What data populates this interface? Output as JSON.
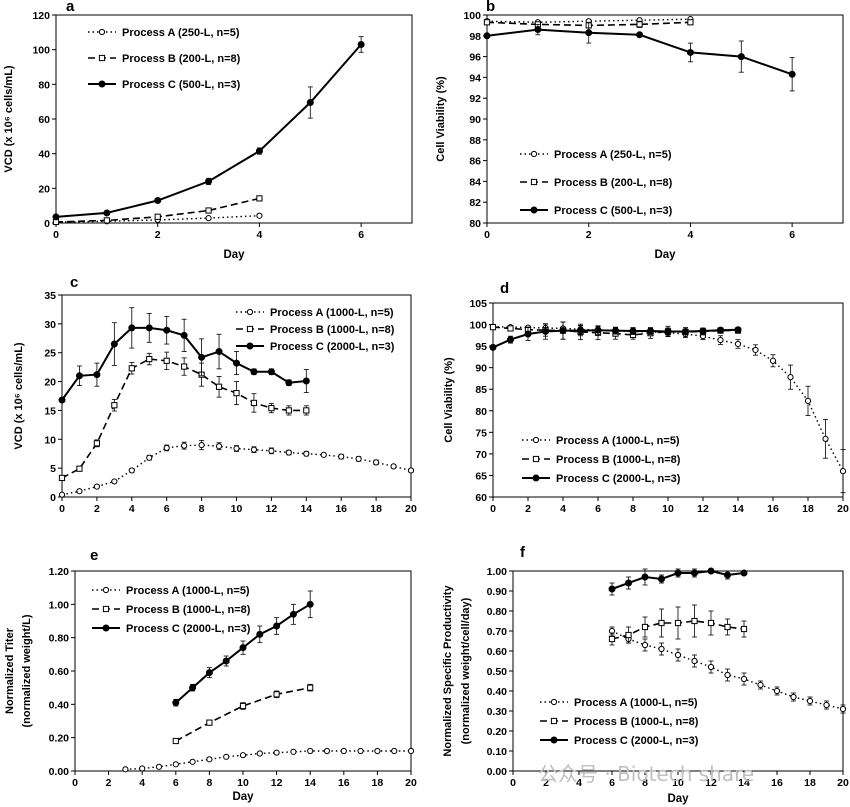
{
  "figure": {
    "watermark": "公众号 · Biotech share"
  },
  "chart_data": [
    {
      "panel": "a",
      "type": "line",
      "title": "",
      "xlabel": "Day",
      "ylabel": "VCD (x 10⁶ cells/mL)",
      "xlim": [
        0,
        7
      ],
      "ylim": [
        0,
        120
      ],
      "xticks": [
        0,
        2,
        4,
        6
      ],
      "yticks": [
        0,
        20,
        40,
        60,
        80,
        100,
        120
      ],
      "ytick_decimals": 0,
      "legend_position": "top-left",
      "series": [
        {
          "name": "Process A (250-L, n=5)",
          "style": "A",
          "x": [
            0,
            1,
            2,
            3,
            4
          ],
          "y": [
            0.5,
            1.0,
            1.8,
            2.8,
            4.2
          ],
          "err": [
            0,
            0,
            0,
            0,
            0.4
          ]
        },
        {
          "name": "Process B (200-L, n=8)",
          "style": "B",
          "x": [
            0,
            1,
            2,
            3,
            4
          ],
          "y": [
            0.6,
            1.5,
            3.6,
            7.2,
            14.2
          ],
          "err": [
            0,
            0,
            0.5,
            0.6,
            1.0
          ]
        },
        {
          "name": "Process C (500-L, n=3)",
          "style": "C",
          "x": [
            0,
            1,
            2,
            3,
            4,
            5,
            6
          ],
          "y": [
            3.5,
            5.8,
            13.0,
            24.0,
            41.5,
            69.5,
            103.0
          ],
          "err": [
            0,
            0.5,
            0.6,
            1.8,
            1.8,
            9.0,
            4.5
          ]
        }
      ]
    },
    {
      "panel": "b",
      "type": "line",
      "title": "",
      "xlabel": "Day",
      "ylabel": "Cell Viability (%)",
      "xlim": [
        0,
        7
      ],
      "ylim": [
        80,
        100
      ],
      "xticks": [
        0,
        2,
        4,
        6
      ],
      "yticks": [
        80,
        82,
        84,
        86,
        88,
        90,
        92,
        94,
        96,
        98,
        100
      ],
      "ytick_decimals": 0,
      "legend_position": "bottom-left",
      "series": [
        {
          "name": "Process A (250-L, n=5)",
          "style": "A",
          "x": [
            0,
            1,
            2,
            3,
            4
          ],
          "y": [
            99.4,
            99.3,
            99.4,
            99.5,
            99.6
          ],
          "err": [
            0,
            0,
            0,
            0,
            0
          ]
        },
        {
          "name": "Process B (200-L, n=8)",
          "style": "B",
          "x": [
            0,
            1,
            2,
            3,
            4
          ],
          "y": [
            99.3,
            99.1,
            99.0,
            99.1,
            99.3
          ],
          "err": [
            0,
            0,
            0,
            0.3,
            0.2
          ]
        },
        {
          "name": "Process C (500-L, n=3)",
          "style": "C",
          "x": [
            0,
            1,
            2,
            3,
            4,
            5,
            6
          ],
          "y": [
            98.0,
            98.6,
            98.3,
            98.1,
            96.4,
            96.0,
            94.3
          ],
          "err": [
            0,
            0.5,
            1.0,
            0,
            0.9,
            1.5,
            1.6
          ]
        }
      ]
    },
    {
      "panel": "c",
      "type": "line",
      "title": "",
      "xlabel": "",
      "ylabel": "VCD (x 10⁶ cells/mL)",
      "xlim": [
        0,
        20
      ],
      "ylim": [
        0,
        35
      ],
      "xticks": [
        0,
        2,
        4,
        6,
        8,
        10,
        12,
        14,
        16,
        18,
        20
      ],
      "yticks": [
        0,
        5,
        10,
        15,
        20,
        25,
        30,
        35
      ],
      "ytick_decimals": 0,
      "legend_position": "top-right",
      "series": [
        {
          "name": "Process A (1000-L, n=5)",
          "style": "A",
          "x": [
            0,
            1,
            2,
            3,
            4,
            5,
            6,
            7,
            8,
            9,
            10,
            11,
            12,
            13,
            14,
            15,
            16,
            17,
            18,
            19,
            20
          ],
          "y": [
            0.4,
            1.0,
            1.8,
            2.7,
            4.6,
            6.8,
            8.5,
            8.9,
            9.0,
            8.8,
            8.4,
            8.2,
            8.0,
            7.7,
            7.5,
            7.3,
            7.0,
            6.6,
            6.0,
            5.3,
            4.6
          ],
          "err": [
            0,
            0,
            0,
            0,
            0.3,
            0.4,
            0.5,
            0.6,
            0.8,
            0.6,
            0.5,
            0.5,
            0.5,
            0.4,
            0.4,
            0.3,
            0.4,
            0.4,
            0.4,
            0.3,
            0.3
          ]
        },
        {
          "name": "Process B (1000-L, n=8)",
          "style": "B",
          "x": [
            0,
            1,
            2,
            3,
            4,
            5,
            6,
            7,
            8,
            9,
            10,
            11,
            12,
            13,
            14
          ],
          "y": [
            3.3,
            4.9,
            9.3,
            15.9,
            22.3,
            23.9,
            23.6,
            22.6,
            21.2,
            19.1,
            18.0,
            16.3,
            15.4,
            15.0,
            15.0
          ],
          "err": [
            0,
            0.4,
            0.6,
            1.0,
            1.0,
            1.0,
            1.5,
            1.5,
            2.0,
            1.8,
            2.0,
            1.6,
            0.8,
            0.8,
            0.8
          ]
        },
        {
          "name": "Process C (2000-L, n=3)",
          "style": "C",
          "x": [
            0,
            1,
            2,
            3,
            4,
            5,
            6,
            7,
            8,
            9,
            10,
            11,
            12,
            13,
            14
          ],
          "y": [
            16.8,
            21.0,
            21.2,
            26.5,
            29.3,
            29.3,
            28.9,
            28.0,
            24.2,
            25.2,
            23.2,
            21.7,
            21.7,
            19.8,
            20.1
          ],
          "err": [
            0,
            1.7,
            2.0,
            3.7,
            3.5,
            2.5,
            2.4,
            2.8,
            3.2,
            3.0,
            2.0,
            0.5,
            0.5,
            0.5,
            2.0
          ]
        }
      ]
    },
    {
      "panel": "d",
      "type": "line",
      "title": "",
      "xlabel": "",
      "ylabel": "Cell Viability (%)",
      "xlim": [
        0,
        20
      ],
      "ylim": [
        60,
        105
      ],
      "xticks": [
        0,
        2,
        4,
        6,
        8,
        10,
        12,
        14,
        16,
        18,
        20
      ],
      "yticks": [
        60,
        65,
        70,
        75,
        80,
        85,
        90,
        95,
        100,
        105
      ],
      "ytick_decimals": 0,
      "legend_position": "bottom-left",
      "series": [
        {
          "name": "Process A (1000-L, n=5)",
          "style": "A",
          "x": [
            0,
            1,
            2,
            3,
            4,
            5,
            6,
            7,
            8,
            9,
            10,
            11,
            12,
            13,
            14,
            15,
            16,
            17,
            18,
            19,
            20
          ],
          "y": [
            99.5,
            99.4,
            99.3,
            99.2,
            99.1,
            98.9,
            98.7,
            98.5,
            98.4,
            98.3,
            98.1,
            97.8,
            97.3,
            96.4,
            95.5,
            94.1,
            91.6,
            87.8,
            82.3,
            73.5,
            66.0
          ],
          "err": [
            0,
            0,
            0,
            0,
            0,
            0.8,
            0.8,
            0.8,
            0.8,
            0.8,
            0.8,
            0.8,
            0.8,
            1.0,
            1.0,
            1.2,
            1.4,
            2.8,
            3.4,
            4.5,
            5.0
          ]
        },
        {
          "name": "Process B (1000-L, n=8)",
          "style": "B",
          "x": [
            0,
            1,
            2,
            3,
            4,
            5,
            6,
            7,
            8,
            9,
            10,
            11,
            12,
            13,
            14
          ],
          "y": [
            99.4,
            99.1,
            98.8,
            98.7,
            98.6,
            98.3,
            98.1,
            97.9,
            97.6,
            98.0,
            98.4,
            98.3,
            98.4,
            98.6,
            98.6
          ],
          "err": [
            0,
            0,
            0.4,
            1.4,
            2.0,
            1.8,
            1.6,
            1.3,
            1.0,
            1.2,
            1.2,
            1.0,
            0.8,
            0.5,
            0.5
          ]
        },
        {
          "name": "Process C (2000-L, n=3)",
          "style": "C",
          "x": [
            0,
            1,
            2,
            3,
            4,
            5,
            6,
            7,
            8,
            9,
            10,
            11,
            12,
            13,
            14
          ],
          "y": [
            94.7,
            96.5,
            97.8,
            98.4,
            98.6,
            98.6,
            98.7,
            98.6,
            98.5,
            98.5,
            98.4,
            98.4,
            98.5,
            98.7,
            98.8
          ],
          "err": [
            0,
            0.8,
            1.5,
            1.8,
            2.0,
            1.2,
            1.0,
            0.8,
            0.8,
            0.8,
            0.8,
            0.6,
            0.5,
            0.4,
            0.4
          ]
        }
      ]
    },
    {
      "panel": "e",
      "type": "line",
      "title": "",
      "xlabel": "Day",
      "ylabel": "Normalized Titer",
      "ylabel2": "(normalized weight/L)",
      "xlim": [
        0,
        20
      ],
      "ylim": [
        0,
        1.2
      ],
      "xticks": [
        0,
        2,
        4,
        6,
        8,
        10,
        12,
        14,
        16,
        18,
        20
      ],
      "yticks": [
        0,
        0.2,
        0.4,
        0.6,
        0.8,
        1.0,
        1.2
      ],
      "ytick_decimals": 2,
      "legend_position": "top-left",
      "series": [
        {
          "name": "Process A (1000-L, n=5)",
          "style": "A",
          "x": [
            3,
            4,
            5,
            6,
            7,
            8,
            9,
            10,
            11,
            12,
            13,
            14,
            15,
            16,
            17,
            18,
            19,
            20
          ],
          "y": [
            0.01,
            0.015,
            0.025,
            0.04,
            0.055,
            0.07,
            0.085,
            0.095,
            0.105,
            0.11,
            0.115,
            0.12,
            0.12,
            0.12,
            0.12,
            0.12,
            0.12,
            0.12
          ],
          "err": [
            0,
            0,
            0,
            0,
            0,
            0,
            0,
            0,
            0,
            0,
            0,
            0,
            0,
            0,
            0,
            0,
            0,
            0
          ]
        },
        {
          "name": "Process B (1000-L, n=8)",
          "style": "B",
          "x": [
            6,
            8,
            10,
            12,
            14
          ],
          "y": [
            0.18,
            0.29,
            0.39,
            0.46,
            0.5
          ],
          "err": [
            0,
            0.015,
            0.02,
            0.02,
            0.02
          ]
        },
        {
          "name": "Process C (2000-L, n=3)",
          "style": "C",
          "x": [
            6,
            7,
            8,
            9,
            10,
            11,
            12,
            13,
            14
          ],
          "y": [
            0.41,
            0.5,
            0.59,
            0.66,
            0.74,
            0.82,
            0.87,
            0.94,
            1.0
          ],
          "err": [
            0.02,
            0.02,
            0.03,
            0.03,
            0.04,
            0.05,
            0.05,
            0.06,
            0.08
          ]
        }
      ]
    },
    {
      "panel": "f",
      "type": "line",
      "title": "",
      "xlabel": "Day",
      "ylabel": "Normalized Specific Productivity",
      "ylabel2": "(normalized weight/cell/day)",
      "xlim": [
        0,
        20
      ],
      "ylim": [
        0,
        1.0
      ],
      "xticks": [
        0,
        2,
        4,
        6,
        8,
        10,
        12,
        14,
        16,
        18,
        20
      ],
      "yticks": [
        0,
        0.1,
        0.2,
        0.3,
        0.4,
        0.5,
        0.6,
        0.7,
        0.8,
        0.9,
        1.0
      ],
      "ytick_decimals": 2,
      "legend_position": "bottom-left",
      "series": [
        {
          "name": "Process A (1000-L, n=5)",
          "style": "A",
          "x": [
            6,
            7,
            8,
            9,
            10,
            11,
            12,
            13,
            14,
            15,
            16,
            17,
            18,
            19,
            20
          ],
          "y": [
            0.7,
            0.66,
            0.63,
            0.61,
            0.58,
            0.55,
            0.52,
            0.48,
            0.46,
            0.43,
            0.4,
            0.37,
            0.35,
            0.33,
            0.31
          ],
          "err": [
            0.02,
            0.02,
            0.03,
            0.03,
            0.03,
            0.03,
            0.03,
            0.03,
            0.03,
            0.02,
            0.02,
            0.02,
            0.02,
            0.02,
            0.02
          ]
        },
        {
          "name": "Process B (1000-L, n=8)",
          "style": "B",
          "x": [
            6,
            7,
            8,
            9,
            10,
            11,
            12,
            13,
            14
          ],
          "y": [
            0.66,
            0.68,
            0.72,
            0.74,
            0.74,
            0.75,
            0.74,
            0.72,
            0.71
          ],
          "err": [
            0.03,
            0.04,
            0.05,
            0.07,
            0.08,
            0.08,
            0.06,
            0.04,
            0.04
          ]
        },
        {
          "name": "Process C (2000-L, n=3)",
          "style": "C",
          "x": [
            6,
            7,
            8,
            9,
            10,
            11,
            12,
            13,
            14
          ],
          "y": [
            0.91,
            0.94,
            0.97,
            0.96,
            0.99,
            0.99,
            1.0,
            0.98,
            0.99
          ],
          "err": [
            0.03,
            0.03,
            0.04,
            0.02,
            0.02,
            0.02,
            0.01,
            0.02,
            0.01
          ]
        }
      ]
    }
  ]
}
